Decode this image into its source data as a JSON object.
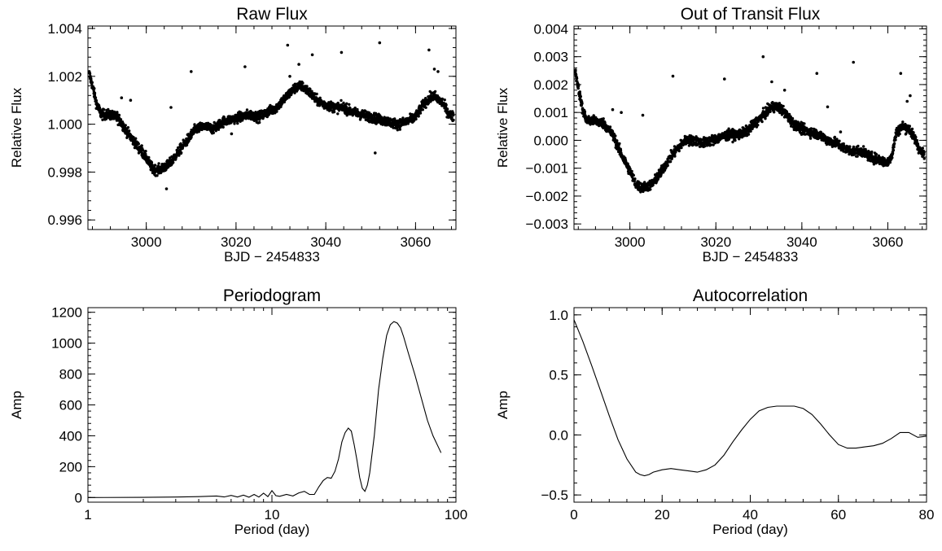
{
  "chart_data": [
    {
      "type": "scatter",
      "title": "Raw Flux",
      "xlabel": "BJD − 2454833",
      "ylabel": "Relative Flux",
      "xlim": [
        2987,
        3069
      ],
      "ylim": [
        0.9956,
        1.0041
      ],
      "xscale": "linear",
      "grid": false,
      "x_ticks": [
        3000,
        3020,
        3040,
        3060
      ],
      "x_tick_labels": [
        "3000",
        "3020",
        "3040",
        "3060"
      ],
      "y_ticks": [
        0.996,
        0.998,
        1.0,
        1.002,
        1.004
      ],
      "y_tick_labels": [
        "0.996",
        "0.998",
        "1.000",
        "1.002",
        "1.004"
      ],
      "trend": [
        [
          2987.3,
          1.0021
        ],
        [
          2988,
          1.0016
        ],
        [
          2989,
          1.0008
        ],
        [
          2990,
          1.0004
        ],
        [
          2992,
          1.0004
        ],
        [
          2994,
          1.0002
        ],
        [
          2996,
          0.9996
        ],
        [
          2998,
          0.9991
        ],
        [
          3000,
          0.9986
        ],
        [
          3001.5,
          0.9981
        ],
        [
          3003,
          0.9981
        ],
        [
          3005,
          0.9983
        ],
        [
          3007,
          0.9988
        ],
        [
          3009,
          0.9993
        ],
        [
          3011,
          0.9998
        ],
        [
          3013,
          0.9999
        ],
        [
          3015,
          0.9998
        ],
        [
          3017,
          1.0001
        ],
        [
          3019,
          1.0002
        ],
        [
          3021,
          1.0003
        ],
        [
          3023,
          1.0004
        ],
        [
          3025,
          1.0003
        ],
        [
          3027,
          1.0005
        ],
        [
          3029,
          1.0007
        ],
        [
          3031,
          1.0011
        ],
        [
          3033,
          1.0015
        ],
        [
          3034.5,
          1.0016
        ],
        [
          3036,
          1.0014
        ],
        [
          3038,
          1.001
        ],
        [
          3040,
          1.0008
        ],
        [
          3042,
          1.0007
        ],
        [
          3044,
          1.0007
        ],
        [
          3046,
          1.0005
        ],
        [
          3048,
          1.0004
        ],
        [
          3050,
          1.0003
        ],
        [
          3052,
          1.0002
        ],
        [
          3054,
          1.0001
        ],
        [
          3056,
          1.0
        ],
        [
          3058,
          1.0001
        ],
        [
          3060,
          1.0003
        ],
        [
          3062,
          1.0009
        ],
        [
          3064,
          1.0012
        ],
        [
          3066,
          1.0009
        ],
        [
          3067.5,
          1.0004
        ],
        [
          3068.5,
          1.0003
        ]
      ],
      "outliers": [
        [
          2993.5,
          1.0005
        ],
        [
          2994.5,
          1.0011
        ],
        [
          2996.5,
          1.001
        ],
        [
          2999,
          0.9991
        ],
        [
          3000.2,
          0.9985
        ],
        [
          3004.5,
          0.9973
        ],
        [
          3005.5,
          1.0007
        ],
        [
          3010,
          1.0022
        ],
        [
          3022,
          1.0024
        ],
        [
          3031.5,
          1.0033
        ],
        [
          3034,
          1.0025
        ],
        [
          3037,
          1.0029
        ],
        [
          3043.5,
          1.003
        ],
        [
          3052,
          1.0034
        ],
        [
          3063,
          1.0031
        ],
        [
          3064.2,
          1.0023
        ],
        [
          3065,
          1.0022
        ],
        [
          3032,
          1.002
        ],
        [
          3051,
          0.9988
        ],
        [
          3019,
          0.9996
        ]
      ]
    },
    {
      "type": "scatter",
      "title": "Out of Transit Flux",
      "xlabel": "BJD − 2454833",
      "ylabel": "Relative Flux",
      "xlim": [
        2987,
        3069
      ],
      "ylim": [
        -0.0032,
        0.0041
      ],
      "xscale": "linear",
      "grid": false,
      "x_ticks": [
        3000,
        3020,
        3040,
        3060
      ],
      "x_tick_labels": [
        "3000",
        "3020",
        "3040",
        "3060"
      ],
      "y_ticks": [
        -0.003,
        -0.002,
        -0.001,
        0.0,
        0.001,
        0.002,
        0.003,
        0.004
      ],
      "y_tick_labels": [
        "−0.003",
        "−0.002",
        "−0.001",
        "0.000",
        "0.001",
        "0.002",
        "0.003",
        "0.004"
      ],
      "trend": [
        [
          2987.3,
          0.0025
        ],
        [
          2988,
          0.0019
        ],
        [
          2989,
          0.0011
        ],
        [
          2990,
          0.0007
        ],
        [
          2992,
          0.0007
        ],
        [
          2994,
          0.0006
        ],
        [
          2996,
          0.0002
        ],
        [
          2998,
          -0.0005
        ],
        [
          3000,
          -0.0011
        ],
        [
          3001.5,
          -0.0016
        ],
        [
          3003,
          -0.0017
        ],
        [
          3005,
          -0.0016
        ],
        [
          3007,
          -0.0012
        ],
        [
          3009,
          -0.0007
        ],
        [
          3011,
          -0.0003
        ],
        [
          3013,
          0.0
        ],
        [
          3015,
          0.0
        ],
        [
          3017,
          -0.0001
        ],
        [
          3019,
          0.0
        ],
        [
          3021,
          0.0001
        ],
        [
          3023,
          0.0002
        ],
        [
          3025,
          0.0002
        ],
        [
          3027,
          0.0003
        ],
        [
          3029,
          0.0006
        ],
        [
          3031,
          0.0009
        ],
        [
          3033,
          0.0012
        ],
        [
          3034.5,
          0.0012
        ],
        [
          3036,
          0.001
        ],
        [
          3038,
          0.0006
        ],
        [
          3040,
          0.0004
        ],
        [
          3042,
          0.0003
        ],
        [
          3044,
          0.0002
        ],
        [
          3046,
          0.0
        ],
        [
          3048,
          -0.0001
        ],
        [
          3050,
          -0.0003
        ],
        [
          3052,
          -0.0004
        ],
        [
          3054,
          -0.0004
        ],
        [
          3056,
          -0.0006
        ],
        [
          3058,
          -0.0007
        ],
        [
          3060,
          -0.0008
        ],
        [
          3061,
          -0.0005
        ],
        [
          3062,
          0.0003
        ],
        [
          3063.5,
          0.0005
        ],
        [
          3065,
          0.0004
        ],
        [
          3066.5,
          0.0
        ],
        [
          3067.5,
          -0.0004
        ],
        [
          3068.5,
          -0.0005
        ]
      ],
      "outliers": [
        [
          2996,
          0.0011
        ],
        [
          2998,
          0.001
        ],
        [
          3003,
          0.0009
        ],
        [
          3010,
          0.0023
        ],
        [
          3022,
          0.0022
        ],
        [
          3031,
          0.003
        ],
        [
          3033,
          0.0021
        ],
        [
          3036,
          0.0018
        ],
        [
          3043.5,
          0.0024
        ],
        [
          3052,
          0.0028
        ],
        [
          3063,
          0.0024
        ],
        [
          3064.5,
          0.0014
        ],
        [
          3065.2,
          0.0016
        ],
        [
          3046,
          0.0012
        ],
        [
          3049,
          0.0003
        ]
      ]
    },
    {
      "type": "line",
      "title": "Periodogram",
      "xlabel": "Period (day)",
      "ylabel": "Amp",
      "xscale": "log",
      "xlim": [
        1,
        100
      ],
      "ylim": [
        -30,
        1230
      ],
      "grid": false,
      "x_ticks": [
        1,
        10,
        100
      ],
      "x_tick_labels": [
        "1",
        "10",
        "100"
      ],
      "y_ticks": [
        0,
        200,
        400,
        600,
        800,
        1000,
        1200
      ],
      "y_tick_labels": [
        "0",
        "200",
        "400",
        "600",
        "800",
        "1000",
        "1200"
      ],
      "x": [
        1,
        2,
        3,
        4,
        5,
        5.5,
        6,
        6.5,
        7,
        7.5,
        8,
        8.5,
        9,
        9.5,
        10,
        10.5,
        11,
        12,
        13,
        14,
        15,
        16,
        17,
        18,
        19,
        20,
        21,
        22,
        23,
        24,
        25,
        26,
        27,
        28,
        29,
        30,
        31,
        32,
        33,
        34,
        36,
        38,
        40,
        42,
        44,
        46,
        48,
        50,
        52,
        55,
        60,
        65,
        70,
        75,
        80,
        83
      ],
      "y": [
        0,
        1,
        3,
        6,
        10,
        4,
        14,
        3,
        16,
        2,
        20,
        3,
        28,
        6,
        45,
        12,
        8,
        20,
        10,
        30,
        40,
        20,
        20,
        70,
        110,
        130,
        125,
        170,
        250,
        360,
        420,
        450,
        430,
        340,
        240,
        130,
        60,
        40,
        80,
        160,
        400,
        700,
        900,
        1050,
        1120,
        1140,
        1130,
        1100,
        1040,
        940,
        790,
        640,
        500,
        400,
        330,
        290
      ]
    },
    {
      "type": "line",
      "title": "Autocorrelation",
      "xlabel": "Period (day)",
      "ylabel": "Amp",
      "xscale": "linear",
      "xlim": [
        0,
        80
      ],
      "ylim": [
        -0.56,
        1.06
      ],
      "grid": false,
      "x_ticks": [
        0,
        20,
        40,
        60,
        80
      ],
      "x_tick_labels": [
        "0",
        "20",
        "40",
        "60",
        "80"
      ],
      "y_ticks": [
        -0.5,
        0.0,
        0.5,
        1.0
      ],
      "y_tick_labels": [
        "−0.5",
        "0.0",
        "0.5",
        "1.0"
      ],
      "x": [
        0,
        2,
        4,
        6,
        8,
        10,
        12,
        14,
        15,
        16,
        17,
        18,
        20,
        22,
        24,
        26,
        28,
        30,
        32,
        34,
        36,
        38,
        40,
        42,
        44,
        46,
        48,
        50,
        52,
        54,
        56,
        58,
        60,
        62,
        64,
        66,
        68,
        70,
        72,
        74,
        76,
        78,
        80
      ],
      "y": [
        0.96,
        0.78,
        0.58,
        0.37,
        0.16,
        -0.04,
        -0.2,
        -0.31,
        -0.33,
        -0.34,
        -0.33,
        -0.31,
        -0.29,
        -0.28,
        -0.29,
        -0.3,
        -0.31,
        -0.29,
        -0.25,
        -0.17,
        -0.06,
        0.04,
        0.13,
        0.2,
        0.23,
        0.24,
        0.24,
        0.24,
        0.22,
        0.17,
        0.09,
        0.0,
        -0.08,
        -0.11,
        -0.11,
        -0.1,
        -0.09,
        -0.07,
        -0.03,
        0.02,
        0.02,
        -0.02,
        -0.01
      ]
    }
  ]
}
